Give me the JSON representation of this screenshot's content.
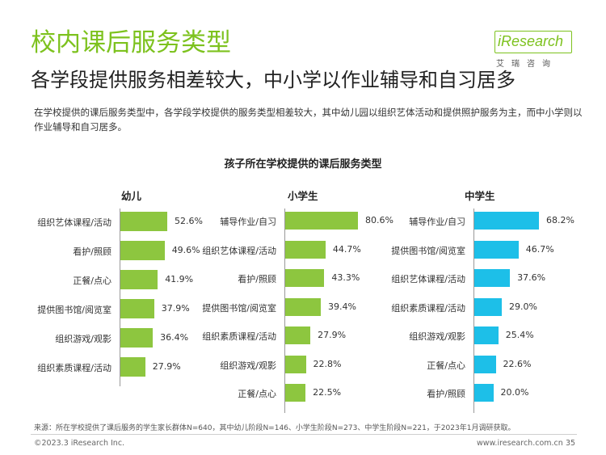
{
  "header": {
    "title": "校内课后服务类型",
    "subtitle": "各学段提供服务相差较大，中小学以作业辅导和自习居多",
    "description": "在学校提供的课后服务类型中，各学段学校提供的服务类型相差较大，其中幼儿园以组织艺体活动和提供照护服务为主，而中小学则以作业辅导和自习居多。"
  },
  "logo": {
    "text": "iResearch",
    "sub": "艾瑞咨询"
  },
  "chart_data": {
    "type": "bar",
    "orientation": "horizontal",
    "title": "孩子所在学校提供的课后服务类型",
    "unit": "%",
    "groups": [
      {
        "name": "幼儿",
        "color": "#8dc63f",
        "categories": [
          "组织艺体课程/活动",
          "看护/照顾",
          "正餐/点心",
          "提供图书馆/阅览室",
          "组织游戏/观影",
          "组织素质课程/活动"
        ],
        "values": [
          52.6,
          49.6,
          41.9,
          37.9,
          36.4,
          27.9
        ],
        "labels": [
          "52.6%",
          "49.6%",
          "41.9%",
          "37.9%",
          "36.4%",
          "27.9%"
        ]
      },
      {
        "name": "小学生",
        "color": "#8dc63f",
        "categories": [
          "辅导作业/自习",
          "组织艺体课程/活动",
          "看护/照顾",
          "提供图书馆/阅览室",
          "组织素质课程/活动",
          "组织游戏/观影",
          "正餐/点心"
        ],
        "values": [
          80.6,
          44.7,
          43.3,
          39.4,
          27.9,
          22.8,
          22.5
        ],
        "labels": [
          "80.6%",
          "44.7%",
          "43.3%",
          "39.4%",
          "27.9%",
          "22.8%",
          "22.5%"
        ]
      },
      {
        "name": "中学生",
        "color": "#1dbfe8",
        "categories": [
          "辅导作业/自习",
          "提供图书馆/阅览室",
          "组织艺体课程/活动",
          "组织素质课程/活动",
          "组织游戏/观影",
          "正餐/点心",
          "看护/照顾"
        ],
        "values": [
          68.2,
          46.7,
          37.6,
          29.0,
          25.4,
          22.6,
          20.0
        ],
        "labels": [
          "68.2%",
          "46.7%",
          "37.6%",
          "29.0%",
          "25.4%",
          "22.6%",
          "20.0%"
        ]
      }
    ]
  },
  "footer": {
    "source": "来源：所在学校提供了课后服务的学生家长群体N=640，其中幼儿阶段N=146、小学生阶段N=273、中学生阶段N=221，于2023年1月调研获取。",
    "copyright": "©2023.3 iResearch Inc.",
    "website": "www.iresearch.com.cn",
    "page": "35"
  }
}
